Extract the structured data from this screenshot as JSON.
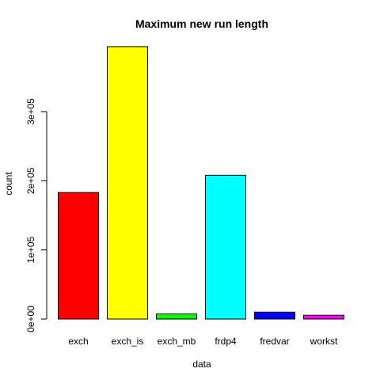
{
  "chart_data": {
    "type": "bar",
    "title": "Maximum new run length",
    "xlabel": "data",
    "ylabel": "count",
    "categories": [
      "exch",
      "exch_is",
      "exch_mb",
      "frdp4",
      "fredvar",
      "workst"
    ],
    "values": [
      183000,
      394000,
      7500,
      208000,
      10000,
      5500
    ],
    "colors": [
      "#FF0000",
      "#FFFF00",
      "#00FF00",
      "#00FFFF",
      "#0000FF",
      "#FF00FF"
    ],
    "yticks": [
      {
        "value": 0,
        "label": "0e+00"
      },
      {
        "value": 100000,
        "label": "1e+05"
      },
      {
        "value": 200000,
        "label": "2e+05"
      },
      {
        "value": 300000,
        "label": "3e+05"
      }
    ],
    "ylim": [
      0,
      400000
    ],
    "grid": false,
    "legend": "none"
  }
}
